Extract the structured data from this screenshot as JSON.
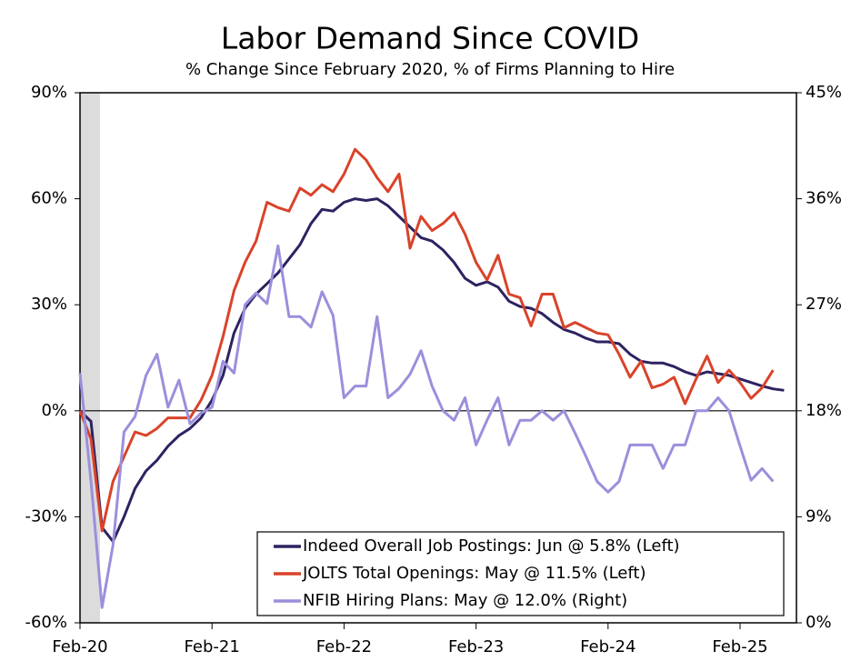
{
  "chart_data": {
    "type": "line",
    "title": "Labor Demand Since COVID",
    "subtitle": "% Change Since February 2020, % of Firms Planning to Hire",
    "categories": [
      "Feb-20",
      null,
      null,
      null,
      null,
      null,
      null,
      null,
      null,
      null,
      null,
      null,
      "Feb-21",
      null,
      null,
      null,
      null,
      null,
      null,
      null,
      null,
      null,
      null,
      null,
      "Feb-22",
      null,
      null,
      null,
      null,
      null,
      null,
      null,
      null,
      null,
      null,
      null,
      "Feb-23",
      null,
      null,
      null,
      null,
      null,
      null,
      null,
      null,
      null,
      null,
      null,
      "Feb-24",
      null,
      null,
      null,
      null,
      null,
      null,
      null,
      null,
      null,
      null,
      null,
      "Feb-25",
      null,
      null,
      null,
      null
    ],
    "series": [
      {
        "name": "Indeed Overall Job Postings: Jun @ 5.8% (Left)",
        "color": "#2d2361",
        "values": [
          0,
          -3,
          -33,
          -37,
          -30,
          -22,
          -17,
          -14,
          -10,
          -7,
          -5,
          -2,
          3,
          10,
          22,
          29,
          33,
          36,
          39,
          43,
          47,
          53,
          57,
          56.5,
          59,
          60,
          59.5,
          60,
          58,
          55,
          52,
          49,
          48,
          45.5,
          42,
          37.5,
          35.5,
          36.5,
          35,
          31,
          29.5,
          29,
          27.5,
          25,
          23,
          22,
          20.5,
          19.5,
          19.5,
          19,
          16,
          14,
          13.5,
          13.5,
          12.5,
          11,
          10,
          11,
          10.5,
          10,
          9,
          8,
          7,
          6.2,
          5.8
        ]
      },
      {
        "name": "JOLTS Total Openings: May @ 11.5% (Left)",
        "color": "#d9432a",
        "values": [
          0,
          -8,
          -34,
          -20,
          -13,
          -6,
          -7,
          -5,
          -2,
          -2,
          -2,
          3,
          10,
          21,
          34,
          42,
          48,
          59,
          57.5,
          56.5,
          63,
          61,
          64,
          62,
          67,
          74,
          71,
          66,
          62,
          67,
          46,
          55,
          51,
          53,
          56,
          50,
          42,
          37,
          44,
          33,
          32,
          24,
          33,
          33,
          23.5,
          25,
          23.5,
          22,
          21.5,
          16,
          9.5,
          14,
          6.5,
          7.5,
          9.5,
          2,
          9,
          15.5,
          8,
          11.5,
          8,
          3.5,
          6.5,
          11.5,
          null
        ]
      },
      {
        "name": "NFIB Hiring Plans: May @ 12.0% (Right)",
        "color": "#9b8fdc",
        "axis": "y2",
        "values": [
          21.2,
          12,
          1.3,
          6.6,
          16.2,
          17.5,
          21,
          22.8,
          18.3,
          20.6,
          16.9,
          17.8,
          18.3,
          22.2,
          21.2,
          27,
          28,
          27.1,
          32,
          26,
          26,
          25.1,
          28.1,
          26.1,
          19.1,
          20.1,
          20.1,
          26,
          19.1,
          19.9,
          21.1,
          23.1,
          20.1,
          18,
          17.2,
          19.1,
          15.1,
          17.2,
          19.1,
          15.1,
          17.2,
          17.2,
          18,
          17.2,
          18,
          16.1,
          14.1,
          12,
          11.1,
          12,
          15.1,
          15.1,
          15.1,
          13.1,
          15.1,
          15.1,
          18,
          18,
          19.1,
          18,
          15,
          12.1,
          13.1,
          12.0,
          null
        ]
      }
    ],
    "ylim": [
      -60,
      90
    ],
    "yticks": [
      {
        "value": -60,
        "label": "-60%"
      },
      {
        "value": -30,
        "label": "-30%"
      },
      {
        "value": 0,
        "label": "0%"
      },
      {
        "value": 30,
        "label": "30%"
      },
      {
        "value": 60,
        "label": "60%"
      },
      {
        "value": 90,
        "label": "90%"
      }
    ],
    "y2lim": [
      0,
      45
    ],
    "y2ticks": [
      {
        "value": 0,
        "label": "0%"
      },
      {
        "value": 9,
        "label": "9%"
      },
      {
        "value": 18,
        "label": "18%"
      },
      {
        "value": 27,
        "label": "27%"
      },
      {
        "value": 36,
        "label": "36%"
      },
      {
        "value": 45,
        "label": "45%"
      }
    ],
    "legend": "lower right"
  }
}
